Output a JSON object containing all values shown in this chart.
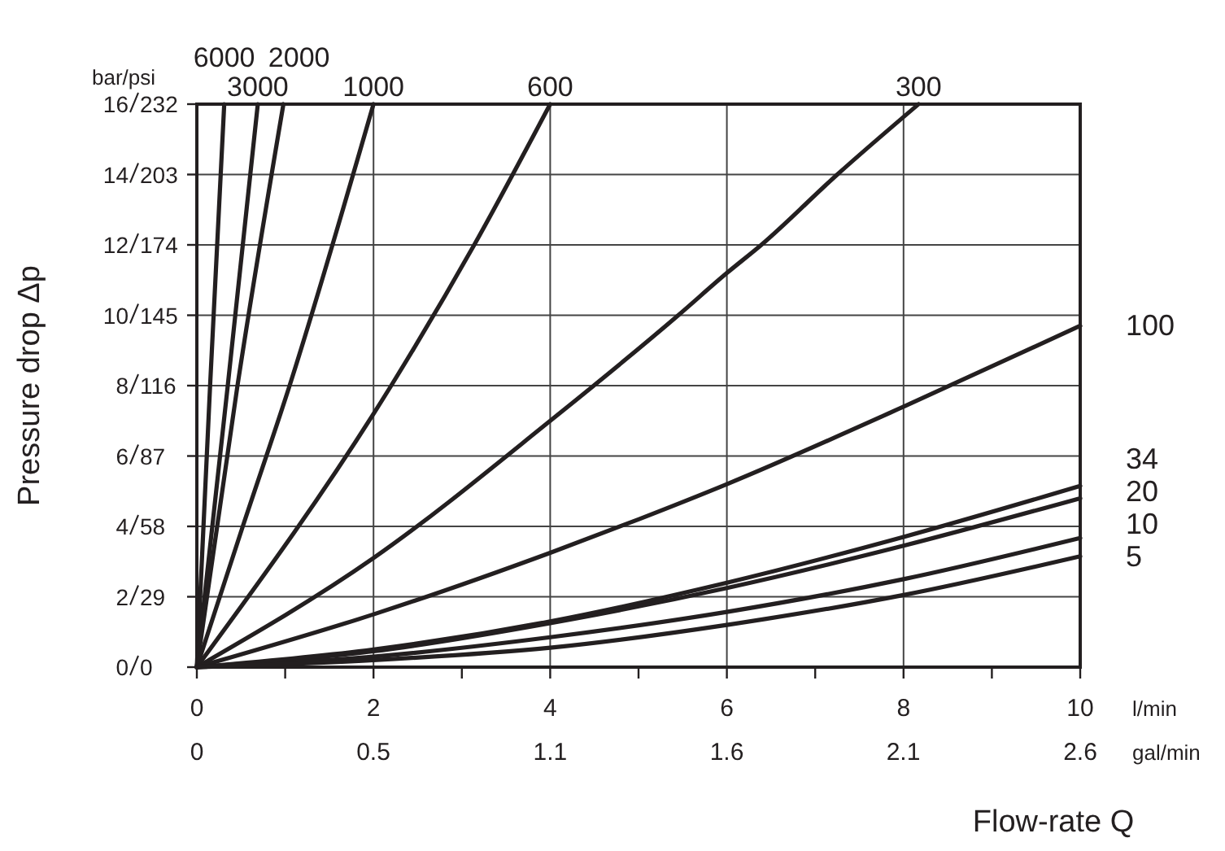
{
  "chart_data": {
    "type": "line",
    "xlabel": "Flow-rate Q",
    "ylabel": "Pressure drop Δp",
    "xlim": [
      0,
      10
    ],
    "xticks": [
      0,
      {
        "value": 1,
        "label": null
      },
      2,
      {
        "value": 3,
        "label": null
      },
      4,
      {
        "value": 5,
        "label": null
      },
      6,
      {
        "value": 7,
        "label": null
      },
      8,
      {
        "value": 9,
        "label": null
      },
      10
    ],
    "x2lim": [
      0,
      2.642
    ],
    "x2ticks": [
      {
        "value": 0,
        "label": "0"
      },
      {
        "value": 0.528,
        "label": "0.5"
      },
      {
        "value": 1.057,
        "label": "1.1"
      },
      {
        "value": 1.585,
        "label": "1.6"
      },
      {
        "value": 2.113,
        "label": "2.1"
      },
      {
        "value": 2.642,
        "label": "2.6"
      }
    ],
    "ylim": [
      0,
      16
    ],
    "yticks": [
      0,
      2,
      4,
      6,
      8,
      10,
      12,
      14,
      16
    ],
    "y2lim": [
      0,
      232
    ],
    "y2ticks": [
      0,
      29,
      58,
      87,
      116,
      145,
      174,
      203,
      232
    ],
    "grid": true,
    "marker": "none",
    "line_style": "solid",
    "annotations": [
      "bar/psi",
      "l/min",
      "gal/min"
    ],
    "series": [
      {
        "name": "6000",
        "color": "#231f20",
        "x": [
          0,
          0.15,
          0.31
        ],
        "values": [
          0,
          8,
          16
        ]
      },
      {
        "name": "3000",
        "color": "#231f20",
        "x": [
          0,
          0.35,
          0.69
        ],
        "values": [
          0,
          8,
          16
        ]
      },
      {
        "name": "2000",
        "color": "#231f20",
        "x": [
          0,
          0.46,
          0.98
        ],
        "values": [
          0,
          8,
          16
        ]
      },
      {
        "name": "1000",
        "color": "#231f20",
        "x": [
          0,
          0.52,
          1.05,
          2
        ],
        "values": [
          0,
          4,
          8,
          16
        ]
      },
      {
        "name": "600",
        "color": "#231f20",
        "x": [
          0,
          2.2,
          3.14,
          4
        ],
        "values": [
          0,
          8,
          12,
          16
        ]
      },
      {
        "name": "300",
        "color": "#231f20",
        "x": [
          0,
          2,
          4,
          5.45,
          6,
          6.39,
          7.25,
          8.17
        ],
        "values": [
          0,
          3.1,
          7,
          10,
          11.2,
          12,
          14,
          16
        ]
      },
      {
        "name": "100",
        "color": "#231f20",
        "x": [
          0,
          2,
          4,
          5,
          6,
          8,
          10
        ],
        "values": [
          0,
          1.5,
          3.25,
          4.2,
          5.2,
          7.4,
          9.7
        ]
      },
      {
        "name": "34",
        "color": "#231f20",
        "x": [
          0,
          2,
          4,
          6,
          8,
          10
        ],
        "values": [
          0,
          0.5,
          1.3,
          2.4,
          3.7,
          5.15
        ]
      },
      {
        "name": "20",
        "color": "#231f20",
        "x": [
          0,
          2,
          4,
          6,
          8,
          10
        ],
        "values": [
          0,
          0.45,
          1.25,
          2.25,
          3.45,
          4.8
        ]
      },
      {
        "name": "10",
        "color": "#231f20",
        "x": [
          0,
          2,
          4,
          6,
          8,
          10
        ],
        "values": [
          0,
          0.3,
          0.85,
          1.57,
          2.5,
          3.67
        ]
      },
      {
        "name": "5",
        "color": "#231f20",
        "x": [
          0,
          2,
          4,
          6,
          8,
          10
        ],
        "values": [
          0,
          0.2,
          0.55,
          1.2,
          2.05,
          3.15
        ]
      }
    ]
  }
}
